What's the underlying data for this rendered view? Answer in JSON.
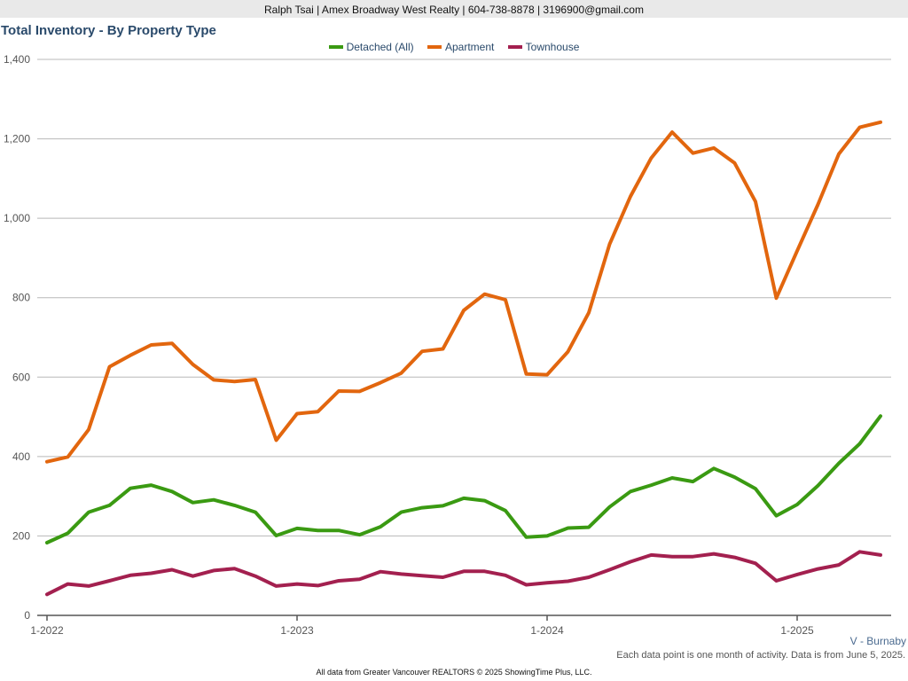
{
  "header": {
    "text": "Ralph Tsai | Amex Broadway West Realty | 604-738-8878 | 3196900@gmail.com"
  },
  "title": "Total Inventory - By Property Type",
  "region": "V - Burnaby",
  "note": "Each data point is one month of activity. Data is from June 5, 2025.",
  "footer": "All data from Greater Vancouver REALTORS © 2025 ShowingTime Plus, LLC.",
  "chart_data": {
    "type": "line",
    "x_tick_labels": [
      "1-2022",
      "1-2023",
      "1-2024",
      "1-2025"
    ],
    "x_tick_months": [
      0,
      12,
      24,
      36
    ],
    "ylim": [
      0,
      1400
    ],
    "y_ticks": [
      0,
      200,
      400,
      600,
      800,
      1000,
      1200,
      1400
    ],
    "y_tick_labels": [
      "0",
      "200",
      "400",
      "600",
      "800",
      "1,000",
      "1,200",
      "1,400"
    ],
    "grid": true,
    "legend_position": "top-center",
    "series": [
      {
        "name": "Detached (All)",
        "color": "#3a9a12",
        "values": [
          183,
          207,
          260,
          277,
          320,
          328,
          312,
          284,
          291,
          277,
          260,
          201,
          219,
          214,
          214,
          203,
          223,
          260,
          271,
          276,
          295,
          289,
          264,
          197,
          200,
          220,
          222,
          273,
          312,
          328,
          346,
          337,
          370,
          348,
          319,
          251,
          279,
          327,
          383,
          432,
          502
        ]
      },
      {
        "name": "Apartment",
        "color": "#e2660e",
        "values": [
          387,
          399,
          468,
          626,
          655,
          681,
          685,
          632,
          593,
          589,
          594,
          441,
          508,
          513,
          565,
          564,
          586,
          610,
          665,
          671,
          768,
          809,
          795,
          608,
          606,
          664,
          762,
          935,
          1055,
          1152,
          1217,
          1164,
          1177,
          1139,
          1042,
          799,
          918,
          1035,
          1162,
          1229,
          1242
        ]
      },
      {
        "name": "Townhouse",
        "color": "#a3204f",
        "values": [
          53,
          79,
          74,
          87,
          101,
          106,
          115,
          99,
          113,
          118,
          99,
          74,
          79,
          75,
          87,
          91,
          110,
          104,
          100,
          96,
          111,
          111,
          101,
          77,
          82,
          86,
          96,
          115,
          135,
          152,
          148,
          148,
          155,
          146,
          131,
          87,
          103,
          117,
          127,
          160,
          152
        ]
      }
    ]
  }
}
